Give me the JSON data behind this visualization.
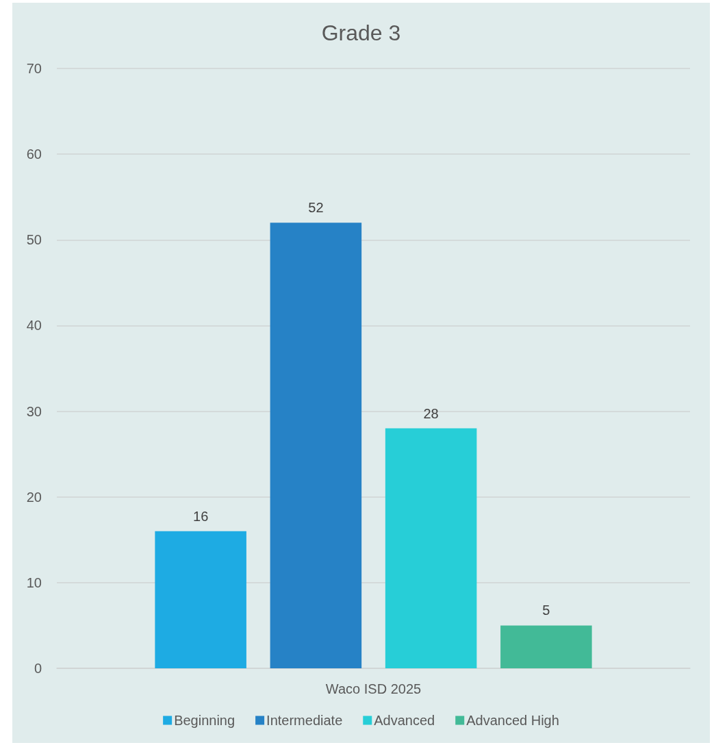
{
  "chart_data": {
    "type": "bar",
    "title": "Grade 3",
    "categories": [
      "Waco ISD 2025"
    ],
    "series": [
      {
        "name": "Beginning",
        "color": "#1eabe3",
        "values": [
          16
        ]
      },
      {
        "name": "Intermediate",
        "color": "#2682c6",
        "values": [
          52
        ]
      },
      {
        "name": "Advanced",
        "color": "#27ced7",
        "values": [
          28
        ]
      },
      {
        "name": "Advanced High",
        "color": "#42ba97",
        "values": [
          5
        ]
      }
    ],
    "ylim": [
      0,
      70
    ],
    "yticks": [
      0,
      10,
      20,
      30,
      40,
      50,
      60,
      70
    ],
    "grid": "y",
    "legend": "bottom",
    "data_labels": true
  }
}
